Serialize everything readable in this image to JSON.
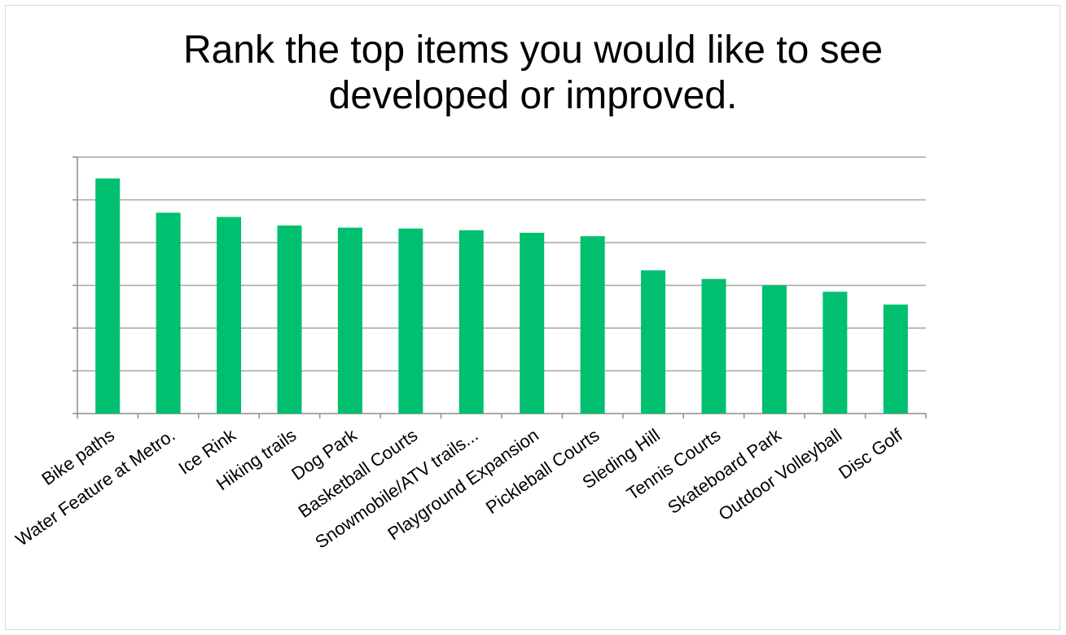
{
  "chart_data": {
    "type": "bar",
    "title": "Rank the top items you would like to see developed or improved.",
    "categories": [
      "Bike paths",
      "Water Feature at Metro.",
      "Ice Rink",
      "Hiking trails",
      "Dog Park",
      "Basketball Courts",
      "Snowmobile/ATV trails...",
      "Playground Expansion",
      "Pickleball Courts",
      "Sleding Hill",
      "Tennis Courts",
      "Skateboard Park",
      "Outdoor Volleyball",
      "Disc Golf"
    ],
    "values": [
      5.5,
      4.7,
      4.6,
      4.4,
      4.35,
      4.33,
      4.29,
      4.23,
      4.15,
      3.35,
      3.15,
      3.0,
      2.85,
      2.55
    ],
    "ylim": [
      0,
      6
    ],
    "grid": true,
    "legend": "none",
    "bar_color": "#00bf6f",
    "grid_color": "#a6a6a6",
    "axis_color": "#8c8c8c"
  }
}
